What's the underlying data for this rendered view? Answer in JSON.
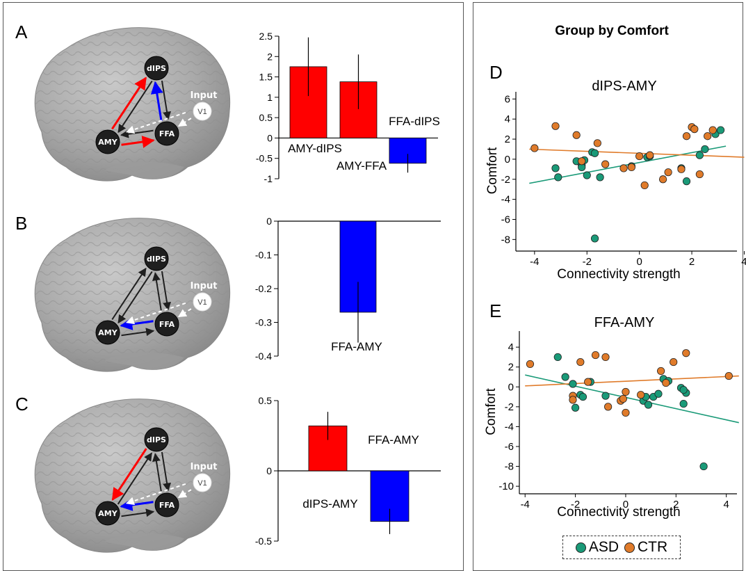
{
  "colors": {
    "red": "#ff0000",
    "blue": "#0000ff",
    "asd": "#1a9a78",
    "ctr": "#e07b2a",
    "node": "#1f1f1f"
  },
  "panel_letters": {
    "A": "A",
    "B": "B",
    "C": "C",
    "D": "D",
    "E": "E"
  },
  "right_title": "Group by Comfort",
  "brain_labels": {
    "dips": "dIPS",
    "amy": "AMY",
    "ffa": "FFA",
    "v1": "V1",
    "input": "Input"
  },
  "brain_panels": [
    {
      "amy_dips": "red-up",
      "dips_ffa": "blue-up",
      "amy_ffa": "red-right",
      "ffa_amy": "black"
    },
    {
      "amy_dips": "black",
      "dips_ffa": "black",
      "amy_ffa": "black",
      "ffa_amy": "blue"
    },
    {
      "amy_dips": "red-down",
      "dips_ffa": "black",
      "amy_ffa": "black",
      "ffa_amy": "blue"
    }
  ],
  "chart_data": [
    {
      "type": "bar",
      "id": "A",
      "categories": [
        "AMY-dIPS",
        "AMY-FFA",
        "FFA-dIPS"
      ],
      "values": [
        1.75,
        1.38,
        -0.62
      ],
      "errors": [
        0.72,
        0.67,
        0.23
      ],
      "colors": [
        "red",
        "red",
        "blue"
      ],
      "yticks": [
        "2.5",
        "2",
        "1.5",
        "1",
        "0.5",
        "0",
        "-0.5",
        "-1"
      ],
      "ylim": [
        -1,
        2.5
      ]
    },
    {
      "type": "bar",
      "id": "B",
      "categories": [
        "FFA-AMY"
      ],
      "values": [
        -0.27
      ],
      "errors": [
        0.09
      ],
      "colors": [
        "blue"
      ],
      "yticks": [
        "0",
        "-0.1",
        "-0.2",
        "-0.3",
        "-0.4"
      ],
      "ylim": [
        -0.4,
        0
      ]
    },
    {
      "type": "bar",
      "id": "C",
      "categories": [
        "dIPS-AMY",
        "FFA-AMY"
      ],
      "values": [
        0.32,
        -0.36
      ],
      "errors": [
        0.1,
        0.09
      ],
      "colors": [
        "red",
        "blue"
      ],
      "yticks": [
        "0.5",
        "0",
        "-0.5"
      ],
      "ylim": [
        -0.5,
        0.5
      ]
    },
    {
      "type": "scatter",
      "id": "D",
      "title": "dIPS-AMY",
      "xlabel": "Connectivity strength",
      "ylabel": "Comfort",
      "xlim": [
        -4.5,
        4.2
      ],
      "ylim": [
        -8.6,
        6.3
      ],
      "xticks": [
        "-4",
        "-2",
        "0",
        "2",
        "4"
      ],
      "yticks": [
        "6",
        "4",
        "2",
        "0",
        "-2",
        "-4",
        "-6",
        "-8"
      ],
      "series": [
        {
          "name": "ASD",
          "x": [
            -3.2,
            -3.1,
            -2.4,
            -2.2,
            -2.2,
            -2.1,
            -2.0,
            -1.8,
            -1.7,
            -1.5,
            -0.3,
            0.3,
            0.4,
            1.6,
            1.8,
            2.3,
            2.5,
            2.9,
            3.1,
            -1.7
          ],
          "y": [
            -0.9,
            -1.8,
            -0.2,
            -0.6,
            -0.8,
            -0.1,
            -1.6,
            0.7,
            0.6,
            -1.8,
            -0.7,
            0.2,
            0.3,
            -0.9,
            -2.2,
            0.4,
            1.0,
            2.5,
            2.9,
            -7.9
          ]
        },
        {
          "name": "CTR",
          "x": [
            -4.0,
            -3.2,
            -2.4,
            -2.2,
            -1.6,
            -1.3,
            -0.6,
            0.0,
            0.2,
            0.4,
            0.9,
            1.1,
            1.6,
            1.8,
            2.0,
            2.1,
            2.3,
            2.6,
            2.8,
            -0.3
          ],
          "y": [
            1.1,
            3.3,
            2.4,
            -0.2,
            1.6,
            -0.5,
            -0.9,
            0.3,
            -2.6,
            0.4,
            -2.0,
            -1.3,
            -1.0,
            2.3,
            3.2,
            3.0,
            -1.5,
            2.3,
            2.9,
            -0.8
          ]
        }
      ],
      "fits": [
        {
          "name": "ASD",
          "x": [
            -4.2,
            3.3
          ],
          "y": [
            -2.4,
            1.3
          ]
        },
        {
          "name": "CTR",
          "x": [
            -4.2,
            4.0
          ],
          "y": [
            1.0,
            0.2
          ]
        }
      ]
    },
    {
      "type": "scatter",
      "id": "E",
      "title": "FFA-AMY",
      "xlabel": "Connectivity strength",
      "ylabel": "Comfort",
      "xlim": [
        -4.2,
        4.7
      ],
      "ylim": [
        -10.2,
        5.2
      ],
      "xticks": [
        "-4",
        "-2",
        "0",
        "2",
        "4"
      ],
      "yticks": [
        "4",
        "2",
        "0",
        "-2",
        "-4",
        "-6",
        "-8",
        "-10"
      ],
      "series": [
        {
          "name": "ASD",
          "x": [
            -2.7,
            -2.4,
            -2.1,
            -2.0,
            -1.8,
            -1.7,
            -1.4,
            -0.8,
            0.7,
            0.8,
            0.9,
            1.1,
            1.3,
            1.5,
            1.7,
            2.2,
            2.3,
            2.4,
            2.3,
            3.1
          ],
          "y": [
            3.0,
            1.0,
            0.3,
            -2.1,
            -0.8,
            -1.0,
            0.5,
            -0.9,
            -1.4,
            -1.0,
            -1.8,
            -1.0,
            -0.7,
            0.8,
            0.6,
            -0.1,
            -1.7,
            -0.6,
            -0.3,
            -8.0
          ]
        },
        {
          "name": "CTR",
          "x": [
            -3.8,
            -1.8,
            -2.1,
            -1.5,
            -1.2,
            -0.8,
            -0.7,
            -0.2,
            0.0,
            0.0,
            0.6,
            1.4,
            1.9,
            2.4,
            4.1,
            -2.1,
            -0.1,
            1.6
          ],
          "y": [
            2.3,
            2.5,
            -0.9,
            0.5,
            3.2,
            3.0,
            -2.0,
            -1.4,
            -0.5,
            -2.6,
            -0.8,
            1.6,
            2.5,
            3.4,
            1.1,
            -1.3,
            -1.2,
            0.4
          ]
        }
      ],
      "fits": [
        {
          "name": "ASD",
          "x": [
            -4.0,
            4.5
          ],
          "y": [
            1.2,
            -3.6
          ]
        },
        {
          "name": "CTR",
          "x": [
            -4.0,
            4.5
          ],
          "y": [
            0.1,
            1.1
          ]
        }
      ]
    }
  ],
  "legend": [
    {
      "label": "ASD",
      "color": "#1a9a78"
    },
    {
      "label": "CTR",
      "color": "#e07b2a"
    }
  ]
}
